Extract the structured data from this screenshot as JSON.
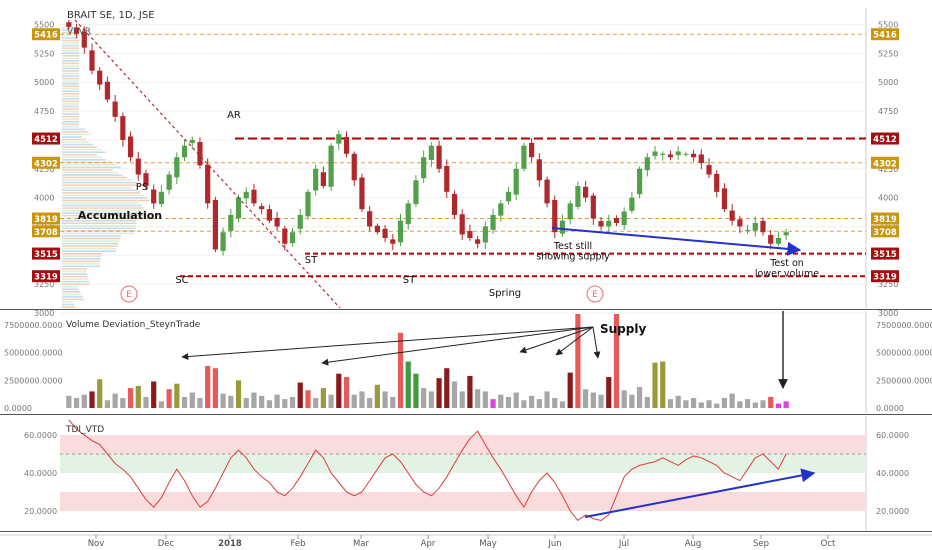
{
  "header": {
    "symbol_label": "BRAIT SE, 1D, JSE",
    "indicator_label": "VPVR"
  },
  "colors": {
    "up_candle": "#52a14a",
    "down_candle": "#b0282c",
    "resistance_line": "#b40000",
    "pivot_line": "#e0a030",
    "trend_arrow": "#2233cc",
    "vol_grey": "#a6a6a6",
    "vol_red": "#e85a5a",
    "vol_darkred": "#8b1a1a",
    "vol_green": "#3f9a3f",
    "vol_olive": "#9a9a3a",
    "vol_pink": "#e040e0",
    "tdi_line": "#e03b3b",
    "tdi_band_high": "#fbdcdc",
    "tdi_band_mid": "#e3f3e3",
    "tdi_band_low": "#fbdcdc"
  },
  "chart_data": [
    {
      "type": "candlestick",
      "title": "BRAIT SE, 1D, JSE",
      "x_ticks": [
        "Nov",
        "Dec",
        "2018",
        "Feb",
        "Mar",
        "Apr",
        "May",
        "Jun",
        "Jul",
        "Aug",
        "Sep",
        "Oct"
      ],
      "y_ticks": [
        "3000",
        "3250",
        "3500",
        "3750",
        "4000",
        "4250",
        "4500",
        "4750",
        "5000",
        "5250",
        "5500"
      ],
      "ylim": [
        3000,
        5600
      ],
      "overlay": "VPVR",
      "price_levels": [
        {
          "value": 5416,
          "label": "5416",
          "style": "pivot"
        },
        {
          "value": 4512,
          "label": "4512",
          "style": "resistance"
        },
        {
          "value": 4302,
          "label": "4302",
          "style": "pivot"
        },
        {
          "value": 3819,
          "label": "3819",
          "style": "pivot"
        },
        {
          "value": 3708,
          "label": "3708",
          "style": "pivot"
        },
        {
          "value": 3515,
          "label": "3515",
          "style": "support"
        },
        {
          "value": 3319,
          "label": "3319",
          "style": "support"
        }
      ],
      "annotations": [
        "AR",
        "PS",
        "Accumulation",
        "SC",
        "ST",
        "ST",
        "Spring",
        "Test still showing supply",
        "Test on lower volume"
      ],
      "event_markers": [
        "E",
        "E"
      ],
      "closes": [
        5480,
        5420,
        5300,
        5100,
        4980,
        4850,
        4700,
        4500,
        4350,
        4200,
        4100,
        3950,
        4050,
        4200,
        4350,
        4450,
        4500,
        4280,
        3950,
        3550,
        3700,
        3850,
        4000,
        4050,
        3950,
        3900,
        3800,
        3750,
        3600,
        3700,
        3850,
        4050,
        4250,
        4100,
        4450,
        4550,
        4380,
        4150,
        3900,
        3750,
        3700,
        3650,
        3600,
        3800,
        3950,
        4150,
        4350,
        4450,
        4250,
        4050,
        3850,
        3680,
        3650,
        3600,
        3750,
        3850,
        3950,
        4050,
        4250,
        4450,
        4350,
        4150,
        3950,
        3700,
        3800,
        3950,
        4100,
        4000,
        3820,
        3750,
        3800,
        3780,
        3880,
        4000,
        4250,
        4350,
        4400,
        4380,
        4350,
        4400,
        4380,
        4350,
        4300,
        4200,
        4050,
        3900,
        3800,
        3750,
        3720,
        3780,
        3700,
        3600,
        3650,
        3700
      ]
    },
    {
      "type": "bar",
      "title": "Volume Deviation_SteynTrade",
      "y_ticks": [
        "0.0000",
        "2500000.0000",
        "5000000.0000",
        "7500000.0000"
      ],
      "ylim": [
        0,
        8500000
      ],
      "annotations": [
        "Supply"
      ],
      "values": [
        1100000,
        900000,
        1200000,
        1500000,
        2600000,
        700000,
        1300000,
        900000,
        1800000,
        2000000,
        1000000,
        2400000,
        600000,
        1700000,
        2200000,
        1000000,
        1400000,
        900000,
        3800000,
        3600000,
        1300000,
        1100000,
        2500000,
        900000,
        1400000,
        1100000,
        700000,
        1200000,
        800000,
        1000000,
        2300000,
        1600000,
        900000,
        1800000,
        1200000,
        3100000,
        2800000,
        1200000,
        1500000,
        900000,
        2100000,
        1500000,
        1000000,
        6800000,
        4200000,
        3100000,
        1800000,
        1500000,
        2700000,
        3600000,
        2400000,
        1500000,
        2900000,
        1700000,
        1500000,
        800000,
        1200000,
        1000000,
        1400000,
        700000,
        1100000,
        800000,
        1500000,
        900000,
        600000,
        3200000,
        8500000,
        1700000,
        1400000,
        1200000,
        2800000,
        8500000,
        1600000,
        1200000,
        1900000,
        1000000,
        4100000,
        4200000,
        800000,
        1100000,
        700000,
        900000,
        500000,
        700000,
        400000,
        900000,
        1300000,
        600000,
        800000,
        500000,
        700000,
        1000000,
        400000,
        600000
      ],
      "bar_kinds": [
        "grey",
        "grey",
        "grey",
        "darkred",
        "olive",
        "grey",
        "grey",
        "grey",
        "red",
        "olive",
        "grey",
        "darkred",
        "grey",
        "red",
        "olive",
        "grey",
        "grey",
        "grey",
        "red",
        "red",
        "grey",
        "grey",
        "olive",
        "grey",
        "grey",
        "grey",
        "grey",
        "grey",
        "grey",
        "grey",
        "darkred",
        "red",
        "grey",
        "olive",
        "grey",
        "darkred",
        "red",
        "grey",
        "grey",
        "grey",
        "olive",
        "grey",
        "grey",
        "red",
        "green",
        "green",
        "grey",
        "grey",
        "darkred",
        "darkred",
        "grey",
        "grey",
        "darkred",
        "grey",
        "grey",
        "pink",
        "grey",
        "grey",
        "grey",
        "grey",
        "grey",
        "grey",
        "grey",
        "grey",
        "grey",
        "darkred",
        "red",
        "grey",
        "grey",
        "grey",
        "darkred",
        "red",
        "grey",
        "grey",
        "grey",
        "grey",
        "olive",
        "olive",
        "grey",
        "grey",
        "grey",
        "grey",
        "grey",
        "grey",
        "grey",
        "grey",
        "grey",
        "grey",
        "grey",
        "grey",
        "grey",
        "red",
        "pink",
        "pink"
      ]
    },
    {
      "type": "line",
      "title": "TDI_VTD",
      "y_ticks": [
        "20.0000",
        "40.0000",
        "60.0000"
      ],
      "ylim": [
        10,
        70
      ],
      "bands": [
        [
          50,
          60
        ],
        [
          40,
          50
        ],
        [
          20,
          30
        ]
      ],
      "values": [
        68,
        63,
        60,
        57,
        55,
        50,
        45,
        42,
        38,
        32,
        26,
        22,
        27,
        35,
        42,
        36,
        28,
        22,
        25,
        32,
        40,
        48,
        52,
        48,
        42,
        38,
        35,
        30,
        28,
        32,
        38,
        45,
        52,
        48,
        40,
        35,
        30,
        28,
        30,
        36,
        42,
        48,
        50,
        46,
        40,
        34,
        30,
        28,
        32,
        38,
        45,
        52,
        58,
        62,
        55,
        48,
        42,
        35,
        28,
        22,
        30,
        36,
        40,
        35,
        28,
        20,
        15,
        18,
        16,
        15,
        18,
        28,
        38,
        42,
        44,
        45,
        46,
        48,
        46,
        44,
        47,
        49,
        48,
        46,
        44,
        40,
        38,
        36,
        42,
        48,
        50,
        46,
        42,
        50
      ]
    }
  ]
}
